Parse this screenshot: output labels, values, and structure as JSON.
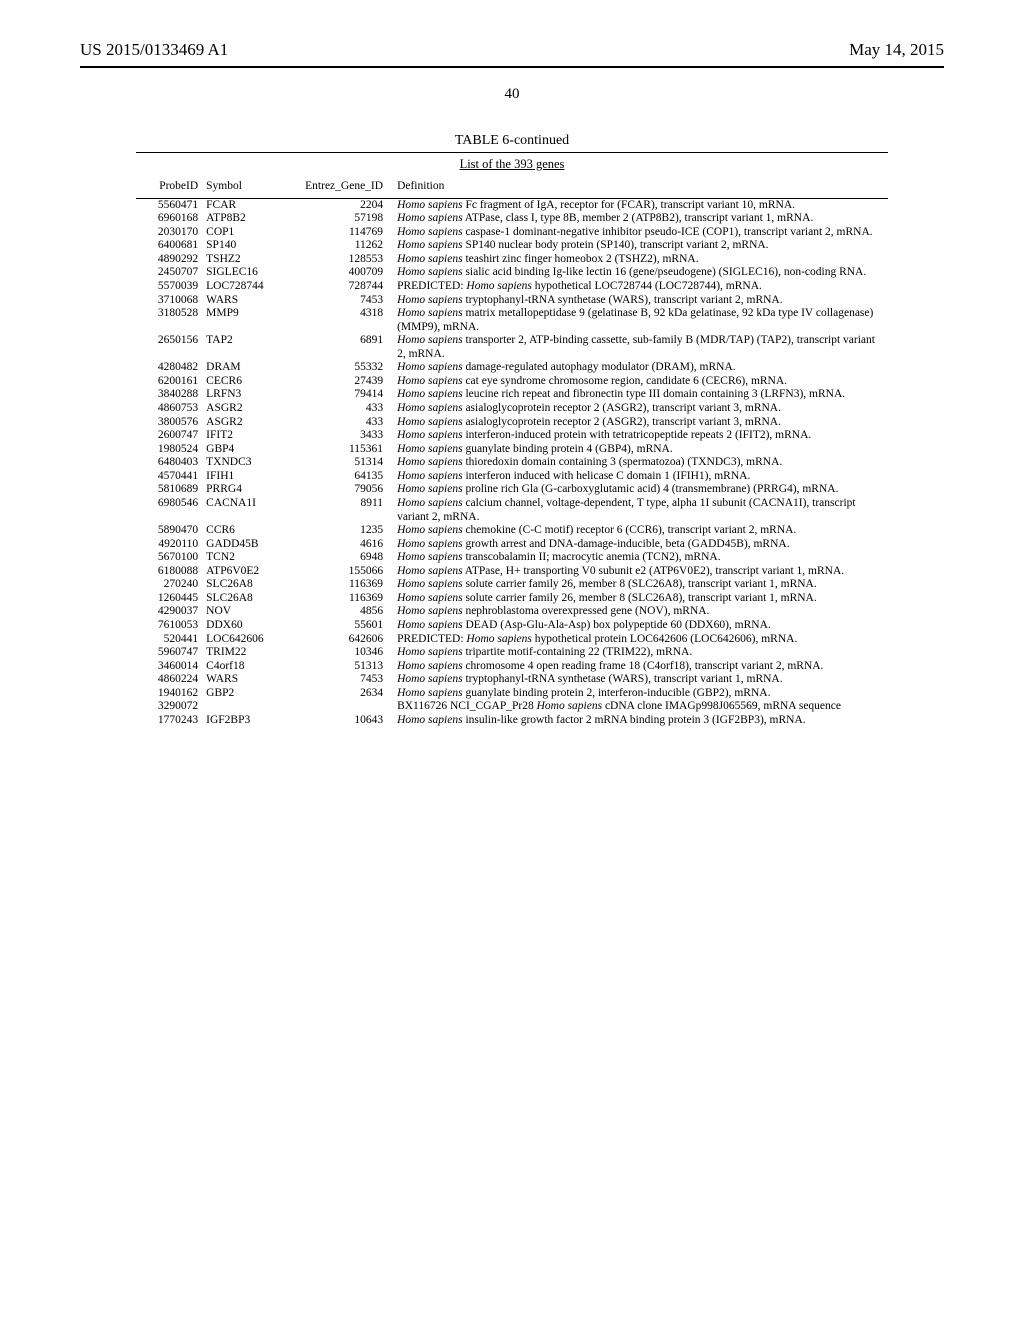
{
  "header": {
    "patent_number": "US 2015/0133469 A1",
    "date": "May 14, 2015"
  },
  "page_number": "40",
  "table": {
    "title": "TABLE 6-continued",
    "caption": "List of the 393 genes",
    "columns": {
      "probe_id": "ProbeID",
      "symbol": "Symbol",
      "entrez": "Entrez_Gene_ID",
      "definition": "Definition"
    },
    "rows": [
      {
        "p": "5560471",
        "s": "FCAR",
        "e": "2204",
        "d": "<em>Homo sapiens</em> Fc fragment of IgA, receptor for (FCAR), transcript variant 10, mRNA."
      },
      {
        "p": "6960168",
        "s": "ATP8B2",
        "e": "57198",
        "d": "<em>Homo sapiens</em> ATPase, class I, type 8B, member 2 (ATP8B2), transcript variant 1, mRNA."
      },
      {
        "p": "2030170",
        "s": "COP1",
        "e": "114769",
        "d": "<em>Homo sapiens</em> caspase-1 dominant-negative inhibitor pseudo-ICE (COP1), transcript variant 2, mRNA."
      },
      {
        "p": "6400681",
        "s": "SP140",
        "e": "11262",
        "d": "<em>Homo sapiens</em> SP140 nuclear body protein (SP140), transcript variant 2, mRNA."
      },
      {
        "p": "4890292",
        "s": "TSHZ2",
        "e": "128553",
        "d": "<em>Homo sapiens</em> teashirt zinc finger homeobox 2 (TSHZ2), mRNA."
      },
      {
        "p": "2450707",
        "s": "SIGLEC16",
        "e": "400709",
        "d": "<em>Homo sapiens</em> sialic acid binding Ig-like lectin 16 (gene/pseudogene) (SIGLEC16), non-coding RNA."
      },
      {
        "p": "5570039",
        "s": "LOC728744",
        "e": "728744",
        "d": "PREDICTED: <em>Homo sapiens</em> hypothetical LOC728744 (LOC728744), mRNA."
      },
      {
        "p": "3710068",
        "s": "WARS",
        "e": "7453",
        "d": "<em>Homo sapiens</em> tryptophanyl-tRNA synthetase (WARS), transcript variant 2, mRNA."
      },
      {
        "p": "3180528",
        "s": "MMP9",
        "e": "4318",
        "d": "<em>Homo sapiens</em> matrix metallopeptidase 9 (gelatinase B, 92 kDa gelatinase, 92 kDa type IV collagenase) (MMP9), mRNA."
      },
      {
        "p": "2650156",
        "s": "TAP2",
        "e": "6891",
        "d": "<em>Homo sapiens</em> transporter 2, ATP-binding cassette, sub-family B (MDR/TAP) (TAP2), transcript variant 2, mRNA."
      },
      {
        "p": "4280482",
        "s": "DRAM",
        "e": "55332",
        "d": "<em>Homo sapiens</em> damage-regulated autophagy modulator (DRAM), mRNA."
      },
      {
        "p": "6200161",
        "s": "CECR6",
        "e": "27439",
        "d": "<em>Homo sapiens</em> cat eye syndrome chromosome region, candidate 6 (CECR6), mRNA."
      },
      {
        "p": "3840288",
        "s": "LRFN3",
        "e": "79414",
        "d": "<em>Homo sapiens</em> leucine rich repeat and fibronectin type III domain containing 3 (LRFN3), mRNA."
      },
      {
        "p": "4860753",
        "s": "ASGR2",
        "e": "433",
        "d": "<em>Homo sapiens</em> asialoglycoprotein receptor 2 (ASGR2), transcript variant 3, mRNA."
      },
      {
        "p": "3800576",
        "s": "ASGR2",
        "e": "433",
        "d": "<em>Homo sapiens</em> asialoglycoprotein receptor 2 (ASGR2), transcript variant 3, mRNA."
      },
      {
        "p": "2600747",
        "s": "IFIT2",
        "e": "3433",
        "d": "<em>Homo sapiens</em> interferon-induced protein with tetratricopeptide repeats 2 (IFIT2), mRNA."
      },
      {
        "p": "1980524",
        "s": "GBP4",
        "e": "115361",
        "d": "<em>Homo sapiens</em> guanylate binding protein 4 (GBP4), mRNA."
      },
      {
        "p": "6480403",
        "s": "TXNDC3",
        "e": "51314",
        "d": "<em>Homo sapiens</em> thioredoxin domain containing 3 (spermatozoa) (TXNDC3), mRNA."
      },
      {
        "p": "4570441",
        "s": "IFIH1",
        "e": "64135",
        "d": "<em>Homo sapiens</em> interferon induced with helicase C domain 1 (IFIH1), mRNA."
      },
      {
        "p": "5810689",
        "s": "PRRG4",
        "e": "79056",
        "d": "<em>Homo sapiens</em> proline rich Gla (G-carboxyglutamic acid) 4 (transmembrane) (PRRG4), mRNA."
      },
      {
        "p": "6980546",
        "s": "CACNA1I",
        "e": "8911",
        "d": "<em>Homo sapiens</em> calcium channel, voltage-dependent, T type, alpha 1I subunit (CACNA1I), transcript variant 2, mRNA."
      },
      {
        "p": "5890470",
        "s": "CCR6",
        "e": "1235",
        "d": "<em>Homo sapiens</em> chemokine (C-C motif) receptor 6 (CCR6), transcript variant 2, mRNA."
      },
      {
        "p": "4920110",
        "s": "GADD45B",
        "e": "4616",
        "d": "<em>Homo sapiens</em> growth arrest and DNA-damage-inducible, beta (GADD45B), mRNA."
      },
      {
        "p": "5670100",
        "s": "TCN2",
        "e": "6948",
        "d": "<em>Homo sapiens</em> transcobalamin II; macrocytic anemia (TCN2), mRNA."
      },
      {
        "p": "6180088",
        "s": "ATP6V0E2",
        "e": "155066",
        "d": "<em>Homo sapiens</em> ATPase, H+ transporting V0 subunit e2 (ATP6V0E2), transcript variant 1, mRNA."
      },
      {
        "p": "270240",
        "s": "SLC26A8",
        "e": "116369",
        "d": "<em>Homo sapiens</em> solute carrier family 26, member 8 (SLC26A8), transcript variant 1, mRNA."
      },
      {
        "p": "1260445",
        "s": "SLC26A8",
        "e": "116369",
        "d": "<em>Homo sapiens</em> solute carrier family 26, member 8 (SLC26A8), transcript variant 1, mRNA."
      },
      {
        "p": "4290037",
        "s": "NOV",
        "e": "4856",
        "d": "<em>Homo sapiens</em> nephroblastoma overexpressed gene (NOV), mRNA."
      },
      {
        "p": "7610053",
        "s": "DDX60",
        "e": "55601",
        "d": "<em>Homo sapiens</em> DEAD (Asp-Glu-Ala-Asp) box polypeptide 60 (DDX60), mRNA."
      },
      {
        "p": "520441",
        "s": "LOC642606",
        "e": "642606",
        "d": "PREDICTED: <em>Homo sapiens</em> hypothetical protein LOC642606 (LOC642606), mRNA."
      },
      {
        "p": "5960747",
        "s": "TRIM22",
        "e": "10346",
        "d": "<em>Homo sapiens</em> tripartite motif-containing 22 (TRIM22), mRNA."
      },
      {
        "p": "3460014",
        "s": "C4orf18",
        "e": "51313",
        "d": "<em>Homo sapiens</em> chromosome 4 open reading frame 18 (C4orf18), transcript variant 2, mRNA."
      },
      {
        "p": "4860224",
        "s": "WARS",
        "e": "7453",
        "d": "<em>Homo sapiens</em> tryptophanyl-tRNA synthetase (WARS), transcript variant 1, mRNA."
      },
      {
        "p": "1940162",
        "s": "GBP2",
        "e": "2634",
        "d": "<em>Homo sapiens</em> guanylate binding protein 2, interferon-inducible (GBP2), mRNA."
      },
      {
        "p": "3290072",
        "s": "",
        "e": "",
        "d": "BX116726 NCI_CGAP_Pr28 <em>Homo sapiens</em> cDNA clone IMAGp998J065569, mRNA sequence"
      },
      {
        "p": "1770243",
        "s": "IGF2BP3",
        "e": "10643",
        "d": "<em>Homo sapiens</em> insulin-like growth factor 2 mRNA binding protein 3 (IGF2BP3), mRNA."
      }
    ]
  }
}
